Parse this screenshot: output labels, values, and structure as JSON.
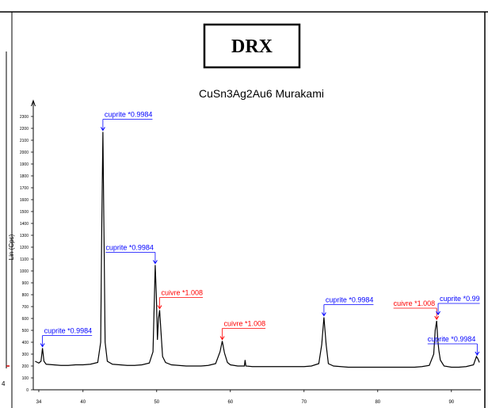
{
  "header": {
    "box": "DRX"
  },
  "side_panel": {
    "label": "4"
  },
  "chart_data": {
    "type": "line",
    "title": "CuSn3Ag2Au6 Murakami",
    "y_label": "Lin (Cps)",
    "xlim": [
      33.25,
      94.0
    ],
    "ylim": [
      0,
      2400
    ],
    "xticks": [
      34,
      40,
      50,
      60,
      70,
      80,
      90
    ],
    "yticks": [
      0,
      100,
      200,
      300,
      400,
      500,
      600,
      700,
      800,
      900,
      1000,
      1100,
      1200,
      1300,
      1400,
      1500,
      1600,
      1700,
      1800,
      1900,
      2000,
      2100,
      2200,
      2300
    ],
    "series": [
      {
        "color": "#000000",
        "x": [
          33.5,
          34.0,
          34.3,
          34.5,
          34.7,
          35.0,
          36,
          37,
          38,
          39,
          40,
          41,
          42,
          42.4,
          42.55,
          42.7,
          42.85,
          43.0,
          43.3,
          44,
          45,
          46,
          47,
          48,
          49,
          49.5,
          49.7,
          49.8,
          49.95,
          50.1,
          50.25,
          50.4,
          50.55,
          50.8,
          51.2,
          52,
          53,
          54,
          55,
          56,
          57,
          58,
          58.6,
          58.9,
          59.2,
          59.6,
          60,
          61,
          61.9,
          62,
          62.1,
          63,
          64,
          65,
          66,
          67,
          68,
          69,
          70,
          71,
          72,
          72.4,
          72.7,
          73.0,
          73.3,
          74,
          75,
          76,
          77,
          78,
          79,
          80,
          81,
          82,
          83,
          84,
          85,
          86,
          87,
          87.6,
          87.8,
          88.0,
          88.15,
          88.3,
          88.5,
          89,
          90,
          91,
          92,
          93,
          93.4,
          93.6,
          93.8
        ],
        "values": [
          240,
          225,
          240,
          350,
          240,
          215,
          210,
          205,
          205,
          210,
          210,
          215,
          230,
          400,
          1400,
          2170,
          1300,
          400,
          240,
          215,
          210,
          205,
          205,
          210,
          225,
          320,
          800,
          1050,
          800,
          420,
          600,
          670,
          520,
          280,
          230,
          210,
          205,
          200,
          200,
          200,
          205,
          220,
          320,
          410,
          310,
          230,
          210,
          200,
          200,
          250,
          200,
          195,
          195,
          195,
          195,
          195,
          195,
          195,
          195,
          200,
          220,
          380,
          610,
          380,
          220,
          200,
          195,
          190,
          190,
          190,
          190,
          190,
          190,
          190,
          190,
          190,
          190,
          195,
          205,
          300,
          500,
          580,
          420,
          330,
          250,
          200,
          190,
          190,
          195,
          210,
          280,
          260,
          230
        ]
      }
    ],
    "annotations": [
      {
        "label": "cuprite *0.9984",
        "color": "#0000ff",
        "x": 34.5,
        "y": 350,
        "side": "right"
      },
      {
        "label": "cuprite *0.9984",
        "color": "#0000ff",
        "x": 42.7,
        "y": 2170,
        "side": "right"
      },
      {
        "label": "cuprite *0.9984",
        "color": "#0000ff",
        "x": 49.8,
        "y": 1050,
        "side": "left"
      },
      {
        "label": "cuivre *1.008",
        "color": "#ff0000",
        "x": 50.4,
        "y": 670,
        "side": "right"
      },
      {
        "label": "cuivre *1.008",
        "color": "#ff0000",
        "x": 58.9,
        "y": 410,
        "side": "right"
      },
      {
        "label": "cuprite *0.9984",
        "color": "#0000ff",
        "x": 72.7,
        "y": 610,
        "side": "right"
      },
      {
        "label": "cuivre *1.008",
        "color": "#ff0000",
        "x": 88.0,
        "y": 580,
        "side": "left"
      },
      {
        "label": "cuprite *0.99",
        "color": "#0000ff",
        "x": 88.2,
        "y": 620,
        "side": "right"
      },
      {
        "label": "cuprite *0.9984",
        "color": "#0000ff",
        "x": 93.5,
        "y": 280,
        "side": "left"
      }
    ]
  }
}
